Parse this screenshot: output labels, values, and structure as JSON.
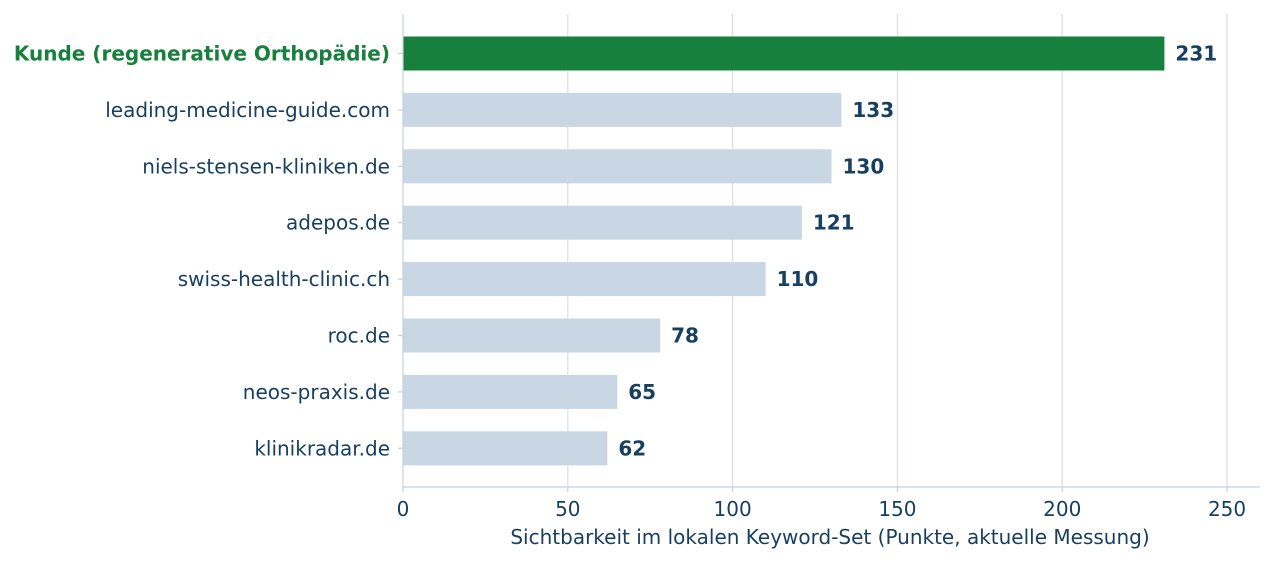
{
  "chart_data": {
    "type": "bar",
    "orientation": "horizontal",
    "categories": [
      "Kunde (regenerative Orthopädie)",
      "leading-medicine-guide.com",
      "niels-stensen-kliniken.de",
      "adepos.de",
      "swiss-health-clinic.ch",
      "roc.de",
      "neos-praxis.de",
      "klinikradar.de"
    ],
    "values": [
      231,
      133,
      130,
      121,
      110,
      78,
      65,
      62
    ],
    "highlight_index": 0,
    "xlabel": "Sichtbarkeit im lokalen Keyword-Set (Punkte, aktuelle Messung)",
    "ylabel": "",
    "title": "",
    "xlim": [
      0,
      260
    ],
    "xticks": [
      0,
      50,
      100,
      150,
      200,
      250
    ],
    "grid": "vertical",
    "legend": "none",
    "colors": {
      "highlight_bar": "#16803c",
      "highlight_label": "#16803c",
      "bar": "#c9d6e4",
      "text": "#173f5f",
      "grid": "#d9dee6",
      "axis": "#c7d0dc"
    }
  }
}
